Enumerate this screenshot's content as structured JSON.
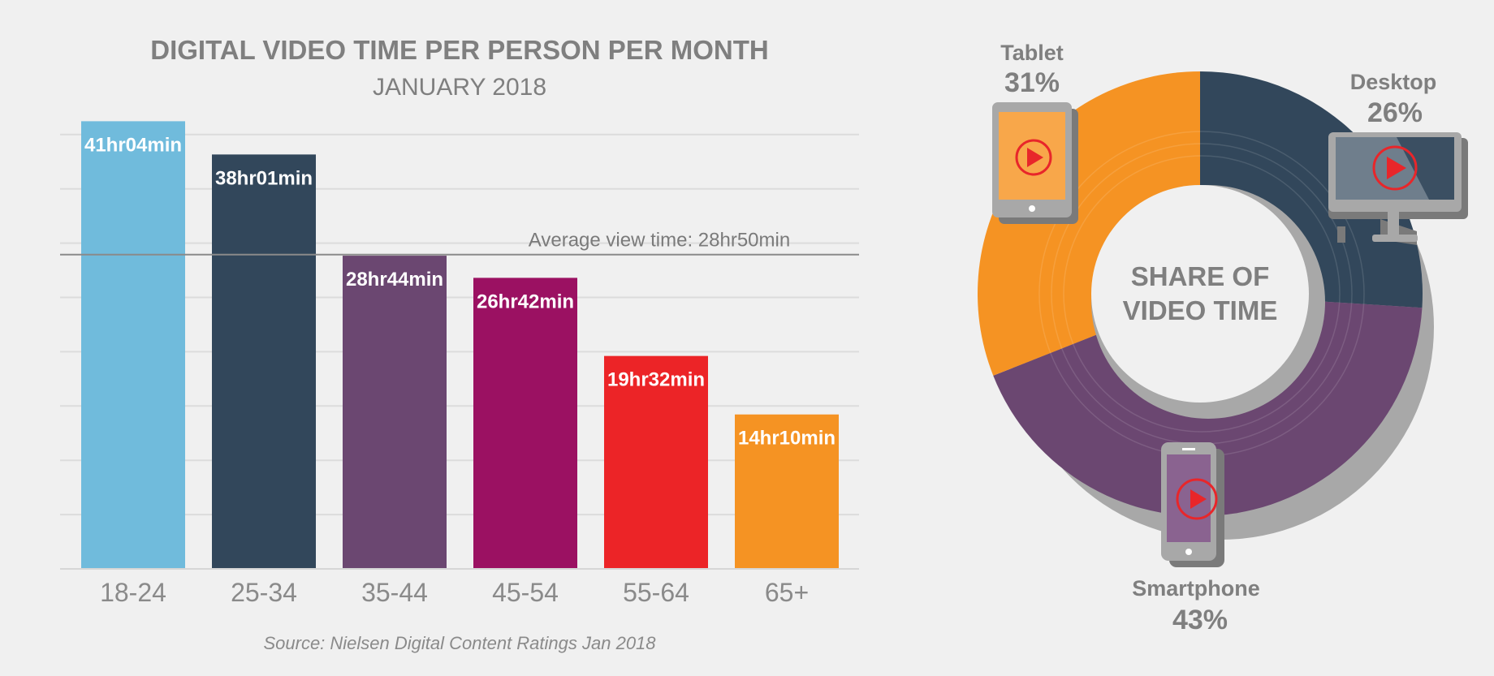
{
  "chart_data": [
    {
      "type": "bar",
      "title": "DIGITAL VIDEO TIME PER PERSON PER MONTH",
      "subtitle": "JANUARY 2018",
      "categories": [
        "18-24",
        "25-34",
        "35-44",
        "45-54",
        "55-64",
        "65+"
      ],
      "values": [
        41.067,
        38.017,
        28.733,
        26.7,
        19.533,
        14.167
      ],
      "value_labels": [
        "41hr04min",
        "38hr01min",
        "28hr44min",
        "26hr42min",
        "19hr32min",
        "14hr10min"
      ],
      "colors": [
        "#70bbdc",
        "#32475b",
        "#6b4771",
        "#9b1162",
        "#ec2427",
        "#f59323"
      ],
      "ylim": [
        0,
        44
      ],
      "grid": true,
      "reference_line": {
        "value": 28.833,
        "label": "Average view time: 28hr50min"
      },
      "source": "Source: Nielsen Digital Content Ratings Jan 2018"
    },
    {
      "type": "pie",
      "title": "SHARE OF VIDEO TIME",
      "title_lines": [
        "SHARE OF",
        "VIDEO TIME"
      ],
      "slices": [
        {
          "label": "Desktop",
          "value": 26,
          "value_label": "26%",
          "color": "#32475b",
          "icon": "desktop-monitor-icon"
        },
        {
          "label": "Smartphone",
          "value": 43,
          "value_label": "43%",
          "color": "#6b4771",
          "icon": "smartphone-icon"
        },
        {
          "label": "Tablet",
          "value": 31,
          "value_label": "31%",
          "color": "#f59323",
          "icon": "tablet-icon"
        }
      ]
    }
  ],
  "colors": {
    "background": "#f0f0f0",
    "heading_text": "#7f7f7f",
    "axis_text": "#8a8a8a",
    "gridline": "#dcdcdc",
    "device_grey": "#a8a8a8",
    "play_red": "#e8262a"
  }
}
